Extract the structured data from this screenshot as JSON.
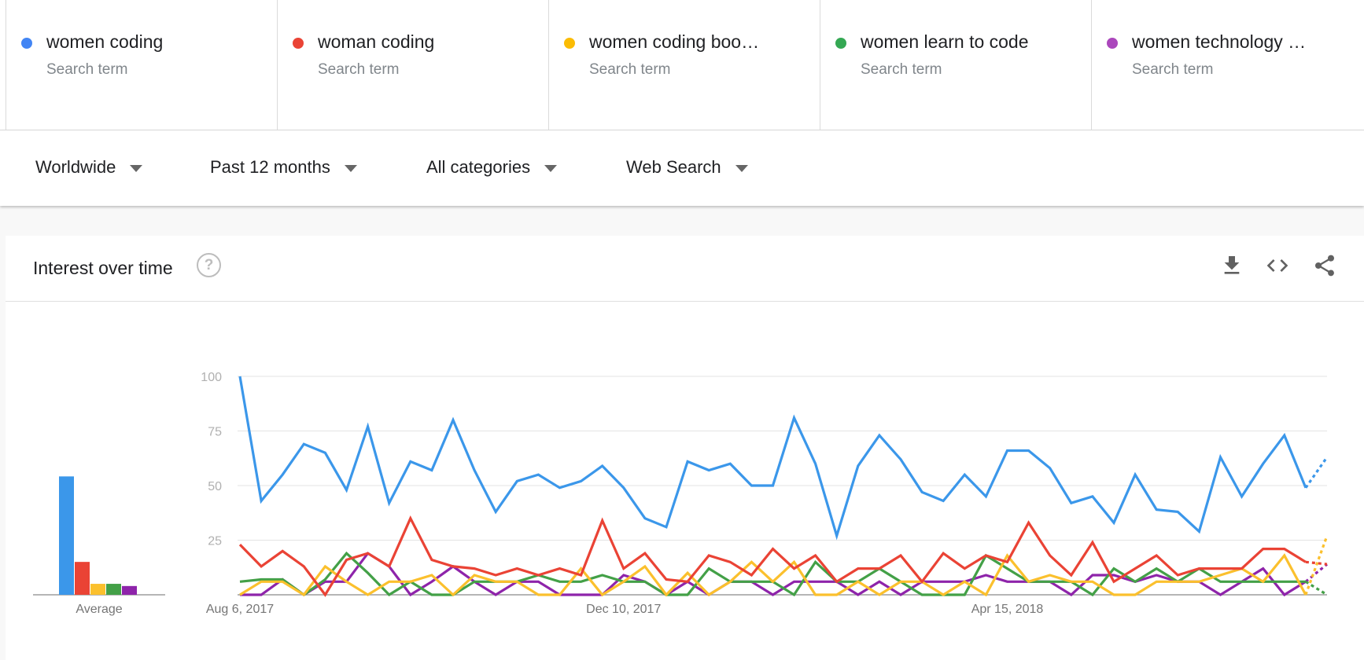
{
  "terms": [
    {
      "name": "women coding",
      "kind": "Search term",
      "color": "#4285f4"
    },
    {
      "name": "woman coding",
      "kind": "Search term",
      "color": "#ea4335"
    },
    {
      "name": "women coding boo…",
      "kind": "Search term",
      "color": "#fbbc04"
    },
    {
      "name": "women learn to code",
      "kind": "Search term",
      "color": "#34a853"
    },
    {
      "name": "women technology …",
      "kind": "Search term",
      "color": "#ab47bc"
    }
  ],
  "filters": {
    "region": "Worldwide",
    "period": "Past 12 months",
    "category": "All categories",
    "search_type": "Web Search"
  },
  "card": {
    "title": "Interest over time",
    "help_icon": "help-circle-icon",
    "actions": [
      "download-icon",
      "embed-code-icon",
      "share-icon"
    ]
  },
  "chart_data": [
    {
      "type": "bar",
      "xlabel": "Average",
      "categories": [
        "women coding",
        "woman coding",
        "women coding boo…",
        "women learn to code",
        "women technology …"
      ],
      "values": [
        54,
        15,
        5,
        5,
        4
      ],
      "colors": [
        "#3b97ea",
        "#ea4335",
        "#fbc02d",
        "#43a047",
        "#8e24aa"
      ],
      "ylim": [
        0,
        100
      ]
    },
    {
      "type": "line",
      "x_tick_labels": [
        "Aug 6, 2017",
        "Dec 10, 2017",
        "Apr 15, 2018"
      ],
      "x_tick_index": [
        0,
        18,
        36
      ],
      "y_ticks": [
        25,
        50,
        75,
        100
      ],
      "ylim": [
        0,
        100
      ],
      "grid": true,
      "partial_last_point": true,
      "series": [
        {
          "name": "women coding",
          "color": "#3b97ea",
          "values": [
            100,
            43,
            55,
            69,
            65,
            48,
            77,
            42,
            61,
            57,
            80,
            57,
            38,
            52,
            55,
            49,
            52,
            59,
            49,
            35,
            31,
            61,
            57,
            60,
            50,
            50,
            81,
            60,
            27,
            59,
            73,
            62,
            47,
            43,
            55,
            45,
            66,
            66,
            58,
            42,
            45,
            33,
            55,
            39,
            38,
            29,
            63,
            45,
            60,
            73,
            49,
            63
          ]
        },
        {
          "name": "woman coding",
          "color": "#ea4335",
          "values": [
            23,
            13,
            20,
            13,
            0,
            16,
            19,
            13,
            35,
            16,
            13,
            12,
            9,
            12,
            9,
            12,
            9,
            34,
            12,
            19,
            7,
            6,
            18,
            15,
            9,
            21,
            12,
            18,
            6,
            12,
            12,
            18,
            6,
            19,
            12,
            18,
            15,
            33,
            18,
            9,
            24,
            6,
            12,
            18,
            9,
            12,
            12,
            12,
            21,
            21,
            15,
            14
          ]
        },
        {
          "name": "women coding boo…",
          "color": "#fbc02d",
          "values": [
            0,
            6,
            6,
            0,
            13,
            6,
            0,
            6,
            6,
            9,
            0,
            9,
            6,
            6,
            0,
            0,
            12,
            0,
            6,
            13,
            0,
            10,
            0,
            6,
            15,
            6,
            15,
            0,
            0,
            6,
            0,
            6,
            6,
            0,
            6,
            0,
            18,
            6,
            9,
            6,
            6,
            0,
            0,
            6,
            6,
            6,
            9,
            12,
            6,
            18,
            0,
            27
          ]
        },
        {
          "name": "women learn to code",
          "color": "#43a047",
          "values": [
            6,
            7,
            7,
            0,
            7,
            19,
            10,
            0,
            6,
            0,
            0,
            6,
            6,
            6,
            9,
            6,
            6,
            9,
            6,
            6,
            0,
            0,
            12,
            6,
            6,
            6,
            0,
            15,
            6,
            6,
            12,
            6,
            0,
            0,
            0,
            18,
            12,
            6,
            6,
            6,
            0,
            12,
            6,
            12,
            6,
            12,
            6,
            6,
            6,
            6,
            6,
            0
          ]
        },
        {
          "name": "women technology …",
          "color": "#8e24aa",
          "values": [
            0,
            0,
            7,
            0,
            6,
            6,
            19,
            13,
            0,
            6,
            13,
            6,
            0,
            6,
            6,
            0,
            0,
            0,
            9,
            6,
            0,
            6,
            0,
            6,
            6,
            0,
            6,
            6,
            6,
            0,
            6,
            0,
            6,
            6,
            6,
            9,
            6,
            6,
            6,
            0,
            9,
            9,
            6,
            9,
            6,
            6,
            0,
            6,
            12,
            0,
            6,
            14
          ]
        }
      ]
    }
  ]
}
